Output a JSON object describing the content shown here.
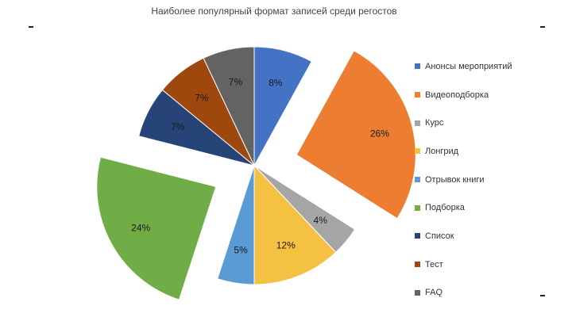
{
  "chart_data": {
    "type": "pie",
    "title": "Наиболее популярный формат записей среди регостов",
    "slices": [
      {
        "name": "Анонсы мероприятий",
        "value": 8,
        "label": "8%",
        "color": "#4472C4"
      },
      {
        "name": "Видеоподборка",
        "value": 26,
        "label": "26%",
        "color": "#ED7D31"
      },
      {
        "name": "Курс",
        "value": 4,
        "label": "4%",
        "color": "#A5A5A5"
      },
      {
        "name": "Лонгрид",
        "value": 12,
        "label": "12%",
        "color": "#F4C142"
      },
      {
        "name": "Отрывок книги",
        "value": 5,
        "label": "5%",
        "color": "#5B9BD5"
      },
      {
        "name": "Подборка",
        "value": 24,
        "label": "24%",
        "color": "#70AD47"
      },
      {
        "name": "Список",
        "value": 7,
        "label": "7%",
        "color": "#264478"
      },
      {
        "name": "Тест",
        "value": 7,
        "label": "7%",
        "color": "#9E480E"
      },
      {
        "name": "FAQ",
        "value": 7,
        "label": "7%",
        "color": "#636363"
      }
    ],
    "exploded": [
      "Видеоподборка",
      "Подборка"
    ],
    "legend_position": "right"
  }
}
